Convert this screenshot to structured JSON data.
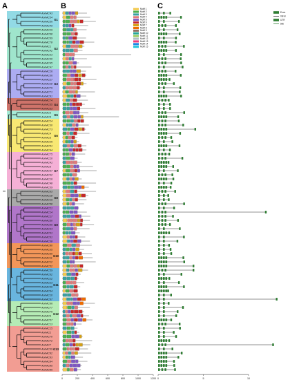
{
  "panels": {
    "a": "A",
    "b": "B",
    "c": "C"
  },
  "group_colors": [
    "#7fd3e0",
    "#8ee0c3",
    "#9d9ef0",
    "#c65b50",
    "#97e8cf",
    "#f7e45a",
    "#f3a2cf",
    "#9a9a9a",
    "#a25ec0",
    "#f0843c",
    "#4fa8d8",
    "#a8e8a8",
    "#f08c80"
  ],
  "group_labels": [
    "G1",
    "G2",
    "G3",
    "G4",
    "G5",
    "G6",
    "G7",
    "G8",
    "G9",
    "G10",
    "G11",
    "G12",
    "G13"
  ],
  "gene_labels": [
    "AoNAC43",
    "AoNAC54",
    "AoNAC56",
    "AoNAC49",
    "AoNAC29",
    "AoNAC68",
    "AoNAC69",
    "AoNAC78",
    "AoNAC1",
    "AoNAC42",
    "AoNAC33",
    "AoNAC40",
    "AoNAC45",
    "AoNAC47",
    "AoNAC26",
    "AoNAC36",
    "AoNAC27",
    "AoNAC28",
    "AoNAC79",
    "AoNAC71",
    "AoNAC81",
    "AoNAC74",
    "AoNAC55",
    "AoNAC53",
    "AoNAC3",
    "AoNAC8",
    "AoNAC24",
    "AoNAC30",
    "AoNAC73",
    "AoNAC4",
    "AoNAC5",
    "AoNAC25",
    "AoNAC51",
    "AoNAC44",
    "AoNAC75",
    "AoNAC20",
    "AoNAC41",
    "AoNAC6",
    "AoNAC37",
    "AoNAC32",
    "AoNAC16",
    "AoNAC48",
    "AoNAC39",
    "AoNAC63",
    "AoNAC18",
    "AoNAC19",
    "AoNAC58",
    "AoNAC21",
    "AoNAC14",
    "AoNAC17",
    "AoNAC50",
    "AoNAC65",
    "AoNAC34",
    "AoNAC31",
    "AoNAC61",
    "AoNAC38",
    "AoNAC80",
    "AoNAC35",
    "AoNAC60",
    "AoNAC11",
    "AoNAC12",
    "AoNAC52",
    "AoNAC59",
    "AoNAC62",
    "AoNAC22",
    "AoNAC23",
    "AoNAC46",
    "AoNAC64",
    "AoNAC10",
    "AoNAC67",
    "AoNAC66",
    "AoNAC77",
    "AoNAC76",
    "AoNAC9",
    "AoNAC57",
    "AoNAC13",
    "AoNAC15",
    "AoNAC2",
    "AoNAC70",
    "AoNAC72",
    "AoNAC7",
    "AoNAC39",
    "AoNAC82",
    "AoNAC83",
    "AoNAC84",
    "AoNAC85",
    "AoNAC86"
  ],
  "motif_legend": [
    {
      "label": "Motif 1",
      "color": "#f2c94c"
    },
    {
      "label": "Motif 2",
      "color": "#4caf50"
    },
    {
      "label": "Motif 3",
      "color": "#3aa0a0"
    },
    {
      "label": "Motif 4",
      "color": "#e07a7a"
    },
    {
      "label": "Motif 5",
      "color": "#7e57c2"
    },
    {
      "label": "Motif 6",
      "color": "#c62828"
    },
    {
      "label": "Motif 7",
      "color": "#d4a017"
    },
    {
      "label": "Motif 8",
      "color": "#ef6c00"
    },
    {
      "label": "Motif 9",
      "color": "#8d6e63"
    },
    {
      "label": "Motif 10",
      "color": "#26a69a"
    },
    {
      "label": "Motif 11",
      "color": "#9ccc65"
    },
    {
      "label": "Motif 12",
      "color": "#b0bec5"
    },
    {
      "label": "Motif 13",
      "color": "#ec407a"
    },
    {
      "label": "Motif 14",
      "color": "#1e88e5"
    },
    {
      "label": "Motif 15",
      "color": "#26c6da"
    }
  ],
  "structure_legend": [
    {
      "label": "Exon",
      "color": "#2e7d32"
    },
    {
      "label": "Intron",
      "color": "#333333"
    },
    {
      "label": "UTR",
      "color": "#2e7d32"
    },
    {
      "label": "5kb",
      "color": "#2e7d32"
    }
  ],
  "axis_b": {
    "ticks": [
      "0",
      "200",
      "400",
      "600",
      "800",
      "1000",
      "1200"
    ]
  },
  "axis_c": {
    "ticks": [
      "0",
      "5",
      "10"
    ]
  }
}
